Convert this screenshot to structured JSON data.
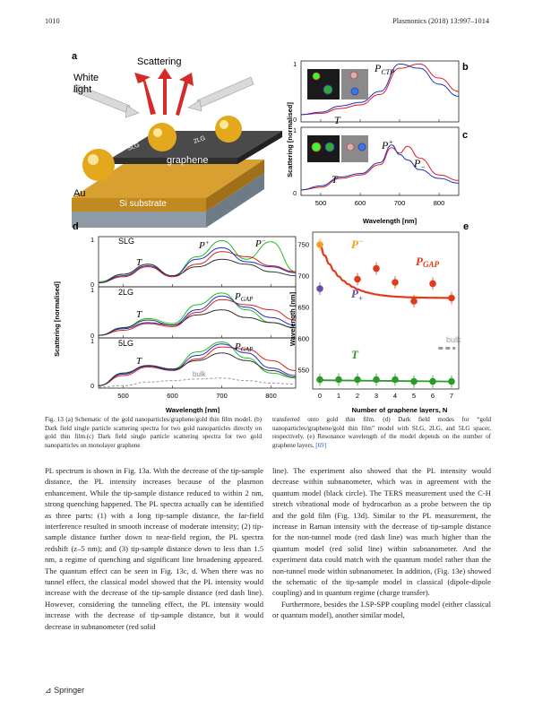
{
  "header": {
    "page": "1010",
    "journal": "Plasmonics (2018) 13:997–1014"
  },
  "panels": {
    "a": {
      "label": "a",
      "scattering": "Scattering",
      "white_light": [
        "White",
        "light"
      ],
      "graphene": "graphene",
      "slg": "SLG",
      "two_lg": "2LG",
      "au": "Au",
      "substrate": "Si substrate"
    },
    "b": {
      "label": "b",
      "annot_ctp": "P",
      "annot_ctp_sub": "CTP",
      "annot_t": "T"
    },
    "c": {
      "label": "c",
      "annot_pplus": "P",
      "annot_pplus_sub": "+",
      "annot_pminus": "P",
      "annot_pminus_sub": "−",
      "annot_t": "T"
    },
    "bc_axes": {
      "ylabel": "Scattering [normalised]",
      "xlabel": "Wavelength [nm]",
      "xticks": [
        "500",
        "600",
        "700",
        "800"
      ],
      "yticks_b": [
        "1",
        "0"
      ],
      "yticks_c": [
        "1",
        "0"
      ]
    },
    "d": {
      "label": "d",
      "ylabel": "Scattering [normalised]",
      "xlabel": "Wavelength [nm]",
      "xticks": [
        "500",
        "600",
        "700",
        "800"
      ],
      "sub": [
        {
          "name": "SLG",
          "annots": [
            "T",
            "P+",
            "P−"
          ],
          "yticks": [
            "1",
            "0"
          ]
        },
        {
          "name": "2LG",
          "annots": [
            "T",
            "PGAP"
          ],
          "yticks": [
            "1",
            "0"
          ]
        },
        {
          "name": "5LG",
          "annots": [
            "T",
            "PGAP",
            "bulk"
          ],
          "yticks": [
            "1",
            "0"
          ]
        }
      ],
      "t_label": "T",
      "pplus": "P",
      "pplus_sub": "+",
      "pminus": "P",
      "pminus_sub": "−",
      "pgap": "P",
      "pgap_sub": "GAP",
      "bulk": "bulk"
    },
    "e": {
      "label": "e",
      "ylabel": "Wavelength [nm]",
      "xlabel": "Number of graphene layers, N",
      "pminus": "P",
      "pminus_sub": "−",
      "pplus": "P",
      "pplus_sub": "+",
      "pgap": "P",
      "pgap_sub": "GAP",
      "t": "T",
      "bulk": "bulk"
    }
  },
  "chart_data": [
    {
      "type": "line",
      "panel": "b",
      "x": [
        450,
        500,
        550,
        600,
        650,
        700,
        750,
        800,
        850
      ],
      "series": [
        {
          "color": "#d62020",
          "values": [
            0.12,
            0.14,
            0.22,
            0.28,
            0.45,
            0.88,
            0.95,
            0.72,
            0.5
          ]
        },
        {
          "color": "#2030c0",
          "values": [
            0.12,
            0.16,
            0.26,
            0.32,
            0.5,
            0.95,
            0.88,
            0.62,
            0.42
          ]
        }
      ],
      "xlim": [
        450,
        850
      ],
      "ylim": [
        0,
        1
      ]
    },
    {
      "type": "line",
      "panel": "c",
      "x": [
        450,
        500,
        550,
        600,
        650,
        680,
        700,
        720,
        750,
        800,
        850
      ],
      "series": [
        {
          "color": "#d62020",
          "values": [
            0.08,
            0.12,
            0.25,
            0.3,
            0.45,
            0.7,
            0.62,
            0.72,
            0.55,
            0.3,
            0.22
          ]
        },
        {
          "color": "#2030c0",
          "values": [
            0.08,
            0.14,
            0.27,
            0.32,
            0.48,
            0.74,
            0.6,
            0.52,
            0.38,
            0.25,
            0.18
          ]
        }
      ],
      "xlim": [
        450,
        850
      ],
      "ylim": [
        0,
        1
      ]
    },
    {
      "type": "line",
      "panel": "d-SLG",
      "x": [
        450,
        500,
        550,
        600,
        650,
        700,
        750,
        800,
        850
      ],
      "series": [
        {
          "color": "#22bb22",
          "values": [
            0.1,
            0.25,
            0.45,
            0.22,
            0.6,
            0.92,
            0.55,
            0.9,
            0.3
          ]
        },
        {
          "color": "#d62020",
          "values": [
            0.08,
            0.2,
            0.4,
            0.2,
            0.45,
            0.7,
            0.6,
            0.42,
            0.3
          ]
        },
        {
          "color": "#2030c0",
          "values": [
            0.08,
            0.22,
            0.42,
            0.22,
            0.55,
            0.78,
            0.5,
            0.4,
            0.28
          ]
        },
        {
          "color": "#333333",
          "values": [
            0.08,
            0.25,
            0.45,
            0.22,
            0.4,
            0.55,
            0.45,
            0.3,
            0.22
          ]
        }
      ],
      "xlim": [
        450,
        850
      ],
      "ylim": [
        0,
        1
      ]
    },
    {
      "type": "line",
      "panel": "d-2LG",
      "x": [
        450,
        500,
        550,
        600,
        650,
        700,
        750,
        800,
        850
      ],
      "series": [
        {
          "color": "#22bb22",
          "values": [
            0.05,
            0.2,
            0.38,
            0.28,
            0.65,
            0.88,
            0.55,
            0.3,
            0.2
          ]
        },
        {
          "color": "#d62020",
          "values": [
            0.05,
            0.15,
            0.28,
            0.22,
            0.5,
            0.75,
            0.65,
            0.55,
            0.35
          ]
        },
        {
          "color": "#2030c0",
          "values": [
            0.05,
            0.18,
            0.3,
            0.25,
            0.55,
            0.82,
            0.6,
            0.4,
            0.25
          ]
        },
        {
          "color": "#333333",
          "values": [
            0.05,
            0.2,
            0.35,
            0.25,
            0.45,
            0.55,
            0.4,
            0.3,
            0.2
          ]
        }
      ],
      "xlim": [
        450,
        850
      ],
      "ylim": [
        0,
        1
      ]
    },
    {
      "type": "line",
      "panel": "d-5LG",
      "x": [
        450,
        500,
        550,
        600,
        650,
        700,
        750,
        800,
        850
      ],
      "series": [
        {
          "color": "#22bb22",
          "values": [
            0.05,
            0.3,
            0.45,
            0.38,
            0.72,
            0.92,
            0.6,
            0.3,
            0.2
          ]
        },
        {
          "color": "#d62020",
          "values": [
            0.05,
            0.25,
            0.42,
            0.35,
            0.58,
            0.82,
            0.78,
            0.55,
            0.35
          ]
        },
        {
          "color": "#2030c0",
          "values": [
            0.05,
            0.28,
            0.44,
            0.36,
            0.65,
            0.88,
            0.7,
            0.4,
            0.25
          ]
        },
        {
          "color": "#333333",
          "values": [
            0.05,
            0.3,
            0.45,
            0.38,
            0.55,
            0.7,
            0.55,
            0.35,
            0.22
          ]
        },
        {
          "color": "#999999",
          "name": "bulk",
          "values": [
            0.02,
            0.05,
            0.12,
            0.15,
            0.18,
            0.2,
            0.15,
            0.1,
            0.08
          ]
        }
      ],
      "xlim": [
        450,
        850
      ],
      "ylim": [
        0,
        1
      ]
    },
    {
      "type": "scatter",
      "panel": "e",
      "x": [
        0,
        1,
        2,
        3,
        4,
        5,
        6,
        7
      ],
      "xticks": [
        "0",
        "1",
        "2",
        "3",
        "4",
        "5",
        "6",
        "7"
      ],
      "yticks": [
        "550",
        "600",
        "650",
        "700",
        "750"
      ],
      "ylim": [
        520,
        770
      ],
      "series": [
        {
          "name": "P−",
          "color": "#f0a020",
          "x": [
            0
          ],
          "values": [
            750
          ]
        },
        {
          "name": "P+",
          "color": "#6a4ca0",
          "x": [
            0
          ],
          "values": [
            680
          ]
        },
        {
          "name": "PGAP",
          "color": "#e03a1a",
          "x": [
            2,
            3,
            4,
            5,
            6,
            7
          ],
          "values": [
            695,
            712,
            690,
            660,
            688,
            665
          ]
        },
        {
          "name": "T",
          "color": "#2a9a2a",
          "x": [
            0,
            1,
            2,
            3,
            4,
            5,
            6,
            7
          ],
          "values": [
            535,
            535,
            535,
            535,
            535,
            532,
            532,
            532
          ]
        }
      ],
      "bulk_value": 585
    }
  ],
  "caption": {
    "left": "Fig. 13 (a) Schematic of the gold nanoparticles/graphene/gold thin film model. (b) Dark field single particle scattering spectra for two gold nanoparticles directly on gold thin film.(c) Dark field single particle scattering spectra for two gold nanoparticles on monolayer graphene",
    "right_a": "transferred onto gold thin film. (d) Dark field modes for “gold nanoparticles/graphene/gold thin film” model with SLG, 2LG, and 5LG spacer, respectively. (e) Resonance wavelength of the model depends on the number of graphene layers. ",
    "right_cite": "[69]"
  },
  "body_left": "PL spectrum is shown in Fig. 13a. With the decrease of the tip-sample distance, the PL intensity increases because of the plasmon enhancement. While the tip-sample distance reduced to within 2 nm, strong quenching happened. The PL spectra actually can be identified as three parts: (1) with a long tip-sample distance, the far-field interference resulted in smooth increase of moderate intensity; (2) tip-sample distance further down to near-field region, the PL spectra redshift (z–5 nm); and (3) tip-sample distance down to less than 1.5 nm, a regime of quenching and significant line broadening appeared. The quantum effect can be seen in Fig. 13c, d. When there was no tunnel effect, the classical model showed that the PL intensity would increase with the decrease of the tip-sample distance (red dash line). However, considering the tunneling effect, the PL intensity would increase with the decrease of tip-sample distance, but it would decrease in subnanometer (red solid",
  "body_right_1": "line). The experiment also showed that the PL intensity would decrease within subnanometer, which was in agreement with the quantum model (black circle). The TERS measurement used the C-H stretch vibrational mode of hydrocarbon as a probe between the tip and the gold film (Fig. 13d). Similar to the PL measurement, the increase in Raman intensity with the decrease of tip-sample distance for the non-tunnel mode (red dash line) was much higher than the quantum model (red solid line) within subnanometer. And the experiment data could match with the quantum model rather than the non-tunnel mode within subnanometer. In addition, (Fig. 13e) showed the schematic of the tip-sample model in classical (dipole-dipole coupling) and in quantum regime (charge transfer).",
  "body_right_2": "Furthermore, besides the LSP-SPP coupling model (either classical or quantum model), another similar model,",
  "footer": {
    "publisher": "Springer",
    "logo_glyph": "⊿"
  }
}
